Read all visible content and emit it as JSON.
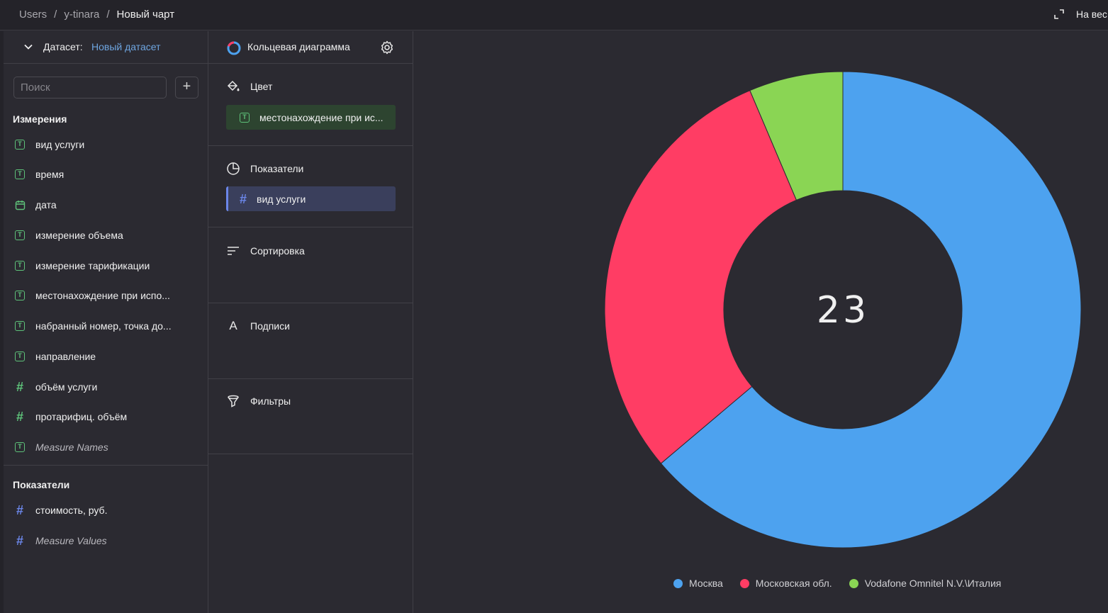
{
  "breadcrumbs": [
    {
      "label": "Users"
    },
    {
      "label": "y-tinara"
    },
    {
      "label": "Новый чарт"
    }
  ],
  "breadcrumb_separator": "/",
  "header": {
    "fullscreen_icon": "expand-icon",
    "weight_label": "На вес"
  },
  "dataset": {
    "label": "Датасет:",
    "name": "Новый датасет"
  },
  "search": {
    "placeholder": "Поиск"
  },
  "dimensions": {
    "title": "Измерения",
    "items": [
      {
        "label": "вид услуги",
        "type": "text"
      },
      {
        "label": "время",
        "type": "text"
      },
      {
        "label": "дата",
        "type": "date"
      },
      {
        "label": "измерение объема",
        "type": "text"
      },
      {
        "label": "измерение тарификации",
        "type": "text"
      },
      {
        "label": "местонахождение при испо...",
        "type": "text"
      },
      {
        "label": "набранный номер, точка до...",
        "type": "text"
      },
      {
        "label": "направление",
        "type": "text"
      },
      {
        "label": "объём услуги",
        "type": "number"
      },
      {
        "label": "протарифиц. объём",
        "type": "number"
      },
      {
        "label": "Measure Names",
        "type": "text"
      }
    ]
  },
  "measures": {
    "title": "Показатели",
    "items": [
      {
        "label": "стоимость, руб.",
        "type": "number"
      },
      {
        "label": "Measure Values",
        "type": "number"
      }
    ]
  },
  "visualization": {
    "title": "Кольцевая диаграмма",
    "sections": {
      "color": {
        "label": "Цвет",
        "chip": "местонахождение при ис..."
      },
      "measures": {
        "label": "Показатели",
        "chip": "вид услуги"
      },
      "sort": {
        "label": "Сортировка"
      },
      "labels": {
        "label": "Подписи"
      },
      "filters": {
        "label": "Фильтры"
      }
    }
  },
  "colors": {
    "moscow": "#4da2ef",
    "region": "#ff3d64",
    "vodafone": "#8ad554"
  },
  "chart_data": {
    "type": "pie",
    "donut": true,
    "center_label": "23",
    "slices": [
      {
        "name": "Москва",
        "value": 15,
        "color": "#4da2ef"
      },
      {
        "name": "Московская обл.",
        "value": 7,
        "color": "#ff3d64"
      },
      {
        "name": "Vodafone Omnitel N.V.\\Италия",
        "value": 1.5,
        "color": "#8ad554"
      }
    ],
    "legend_position": "bottom"
  }
}
